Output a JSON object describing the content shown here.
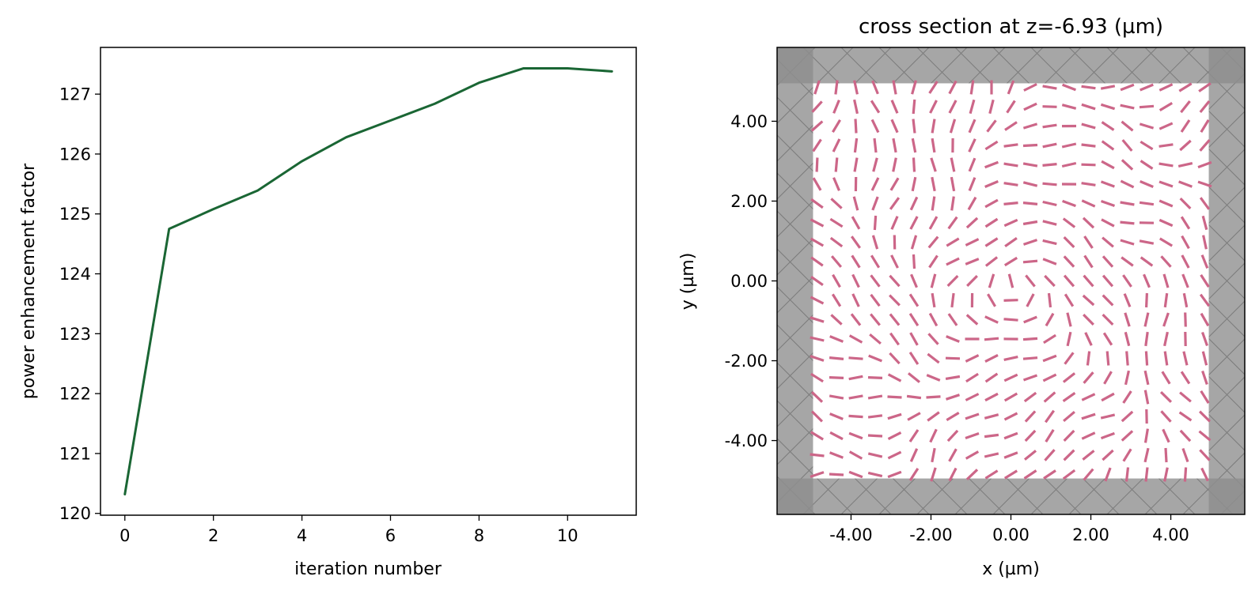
{
  "chart_data": [
    {
      "type": "line",
      "title": "",
      "xlabel": "iteration number",
      "ylabel": "power enhancement factor",
      "x": [
        0,
        1,
        2,
        3,
        4,
        5,
        6,
        7,
        8,
        9,
        10,
        11
      ],
      "series": [
        {
          "values": [
            120.32,
            124.75,
            125.08,
            125.39,
            125.88,
            126.28,
            126.56,
            126.84,
            127.19,
            127.43,
            127.43,
            127.38
          ]
        }
      ],
      "xlim": [
        -0.55,
        11.55
      ],
      "ylim": [
        119.97,
        127.78
      ],
      "xticks": [
        0,
        2,
        4,
        6,
        8,
        10
      ],
      "yticks": [
        120,
        121,
        122,
        123,
        124,
        125,
        126,
        127
      ],
      "grid": false,
      "colors": {
        "line": "#1a6634"
      }
    },
    {
      "type": "quiver",
      "title": "cross section at z=-6.93 (µm)",
      "xlabel": "x (µm)",
      "ylabel": "y (µm)",
      "xlim": [
        -5.85,
        5.85
      ],
      "ylim": [
        -5.85,
        5.85
      ],
      "xticks": [
        -4.0,
        -2.0,
        0.0,
        2.0,
        4.0
      ],
      "yticks": [
        -4.0,
        -2.0,
        0.0,
        2.0,
        4.0
      ],
      "xtick_labels": [
        "-4.00",
        "-2.00",
        "0.00",
        "2.00",
        "4.00"
      ],
      "ytick_labels": [
        "-4.00",
        "-2.00",
        "0.00",
        "2.00",
        "4.00"
      ],
      "pml_inner_edge": 4.95,
      "field_grid": {
        "extent": 4.85,
        "count": 21
      },
      "colors": {
        "field": "#cc6688",
        "pml": "#a6a6a6",
        "pml_corner": "#8e8e8e",
        "pml_hatch": "#7c7c7c"
      }
    }
  ]
}
